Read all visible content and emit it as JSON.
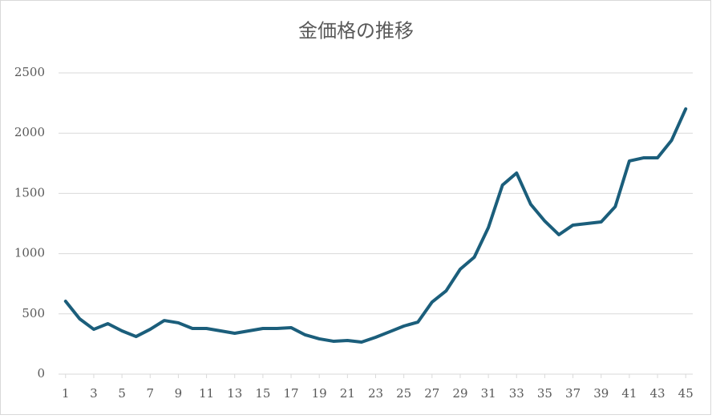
{
  "chart_data": {
    "type": "line",
    "title": "金価格の推移",
    "x": [
      1,
      2,
      3,
      4,
      5,
      6,
      7,
      8,
      9,
      10,
      11,
      12,
      13,
      14,
      15,
      16,
      17,
      18,
      19,
      20,
      21,
      22,
      23,
      24,
      25,
      26,
      27,
      28,
      29,
      30,
      31,
      32,
      33,
      34,
      35,
      36,
      37,
      38,
      39,
      40,
      41,
      42,
      43,
      44,
      45
    ],
    "series": [
      {
        "color": "#1b5e7b",
        "values": [
          605,
          459,
          372,
          419,
          359,
          312,
          372,
          445,
          426,
          379,
          379,
          359,
          339,
          359,
          379,
          379,
          386,
          326,
          293,
          273,
          279,
          266,
          306,
          352,
          399,
          432,
          598,
          691,
          871,
          971,
          1217,
          1569,
          1669,
          1410,
          1270,
          1157,
          1237,
          1250,
          1263,
          1390,
          1769,
          1795,
          1795,
          1941,
          2201
        ]
      }
    ],
    "xlim": [
      0.5,
      45.5
    ],
    "xticks": [
      1,
      3,
      5,
      7,
      9,
      11,
      13,
      15,
      17,
      19,
      21,
      23,
      25,
      27,
      29,
      31,
      33,
      35,
      37,
      39,
      41,
      43,
      45
    ],
    "ylim": [
      0,
      2500
    ],
    "yticks": [
      0,
      500,
      1000,
      1500,
      2000,
      2500
    ],
    "grid": true
  }
}
